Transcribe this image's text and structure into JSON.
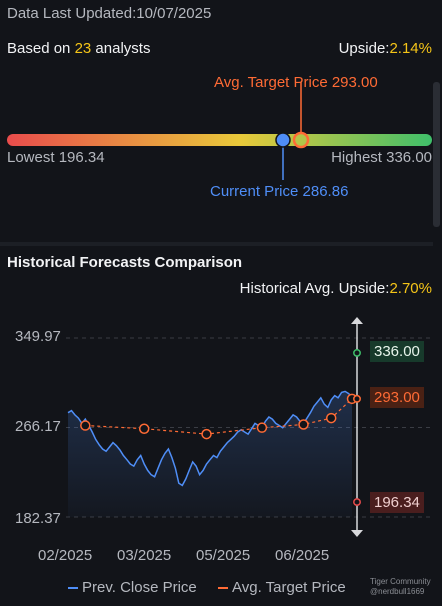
{
  "header": {
    "last_updated": "Data Last Updated:10/07/2025",
    "based_prefix": "Based on ",
    "analyst_count": "23",
    "based_suffix": " analysts",
    "upside_label": "Upside:",
    "upside_value": "2.14%"
  },
  "range": {
    "target_label": "Avg. Target Price 293.00",
    "current_label": "Current Price 286.86",
    "lowest_label": "Lowest 196.34",
    "highest_label": "Highest 336.00",
    "lowest": 196.34,
    "highest": 336.0,
    "current": 286.86,
    "target": 293.0,
    "colors": {
      "low": "#e94c4c",
      "mid": "#e8c93a",
      "high": "#3fbf6a",
      "current": "#4f8ef7",
      "target": "#ff6b35"
    }
  },
  "history": {
    "title": "Historical Forecasts Comparison",
    "upside_label": "Historical Avg. Upside:",
    "upside_value": "2.70%",
    "y_ticks": [
      "349.97",
      "266.17",
      "182.37"
    ],
    "x_ticks": [
      "02/2025",
      "03/2025",
      "05/2025",
      "06/2025"
    ],
    "badges": {
      "high": "336.00",
      "target": "293.00",
      "low": "196.34"
    },
    "legend": {
      "close": "Prev. Close Price",
      "target": "Avg. Target Price"
    }
  },
  "watermark": {
    "line1": "Tiger Community",
    "line2": "@nerdbull1669"
  },
  "chart_data": {
    "type": "line",
    "ylim": [
      182.37,
      349.97
    ],
    "y_ticks": [
      349.97,
      266.17,
      182.37
    ],
    "x_labels": [
      "02/2025",
      "03/2025",
      "05/2025",
      "06/2025"
    ],
    "series": [
      {
        "name": "Prev. Close Price",
        "color": "#4f8ef7",
        "values": [
          280,
          282,
          278,
          275,
          270,
          274,
          268,
          262,
          255,
          250,
          246,
          244,
          248,
          252,
          249,
          245,
          240,
          236,
          232,
          230,
          236,
          240,
          232,
          226,
          222,
          220,
          228,
          236,
          242,
          246,
          238,
          228,
          214,
          212,
          218,
          226,
          234,
          230,
          222,
          226,
          232,
          236,
          240,
          238,
          244,
          248,
          252,
          255,
          258,
          262,
          264,
          262,
          260,
          265,
          270,
          268,
          266,
          272,
          276,
          274,
          270,
          268,
          266,
          270,
          274,
          278,
          276,
          272,
          270,
          275,
          280,
          286,
          290,
          294,
          288,
          285,
          292,
          296,
          294,
          299,
          300,
          298,
          295
        ]
      },
      {
        "name": "Avg. Target Price",
        "color": "#ff6b35",
        "x_index": [
          5,
          22,
          40,
          56,
          68,
          76,
          82
        ],
        "values": [
          268,
          265,
          260,
          266,
          269,
          275,
          293
        ]
      }
    ],
    "reference": {
      "high": 336.0,
      "target": 293.0,
      "low": 196.34
    }
  }
}
